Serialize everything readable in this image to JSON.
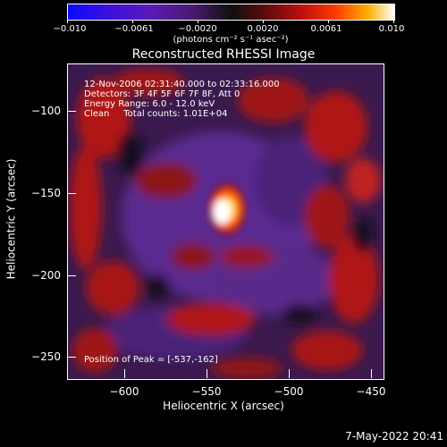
{
  "colorbar": {
    "tick_labels": [
      "−0.010",
      "−0.0061",
      "−0.0020",
      "0.0020",
      "0.0061",
      "0.010"
    ],
    "units": "(photons cm⁻² s⁻¹ asec⁻²)"
  },
  "title": "Reconstructed RHESSI Image",
  "info": {
    "time_range": "12-Nov-2006 02:31:40.000 to 02:33:16.000",
    "detectors": "Detectors: 3F 4F 5F 6F 7F 8F, Att 0",
    "energy": "Energy Range: 6.0 - 12.0 keV",
    "method": "Clean     Total counts: 1.01E+04",
    "peak": "Position of Peak = [-537,-162]"
  },
  "axes": {
    "xlabel": "Heliocentric X (arcsec)",
    "ylabel": "Heliocentric Y (arcsec)",
    "xticks": [
      "−600",
      "−550",
      "−500",
      "−450"
    ],
    "xtick_values": [
      -600,
      -550,
      -500,
      -450
    ],
    "yticks": [
      "−100",
      "−150",
      "−200",
      "−250"
    ],
    "ytick_values": [
      -100,
      -150,
      -200,
      -250
    ],
    "xlim": [
      -632,
      -440
    ],
    "ylim": [
      -270,
      -78
    ]
  },
  "timestamp": "7-May-2022 20:41",
  "colors": {
    "background": "#000000",
    "foreground": "#ffffff"
  }
}
